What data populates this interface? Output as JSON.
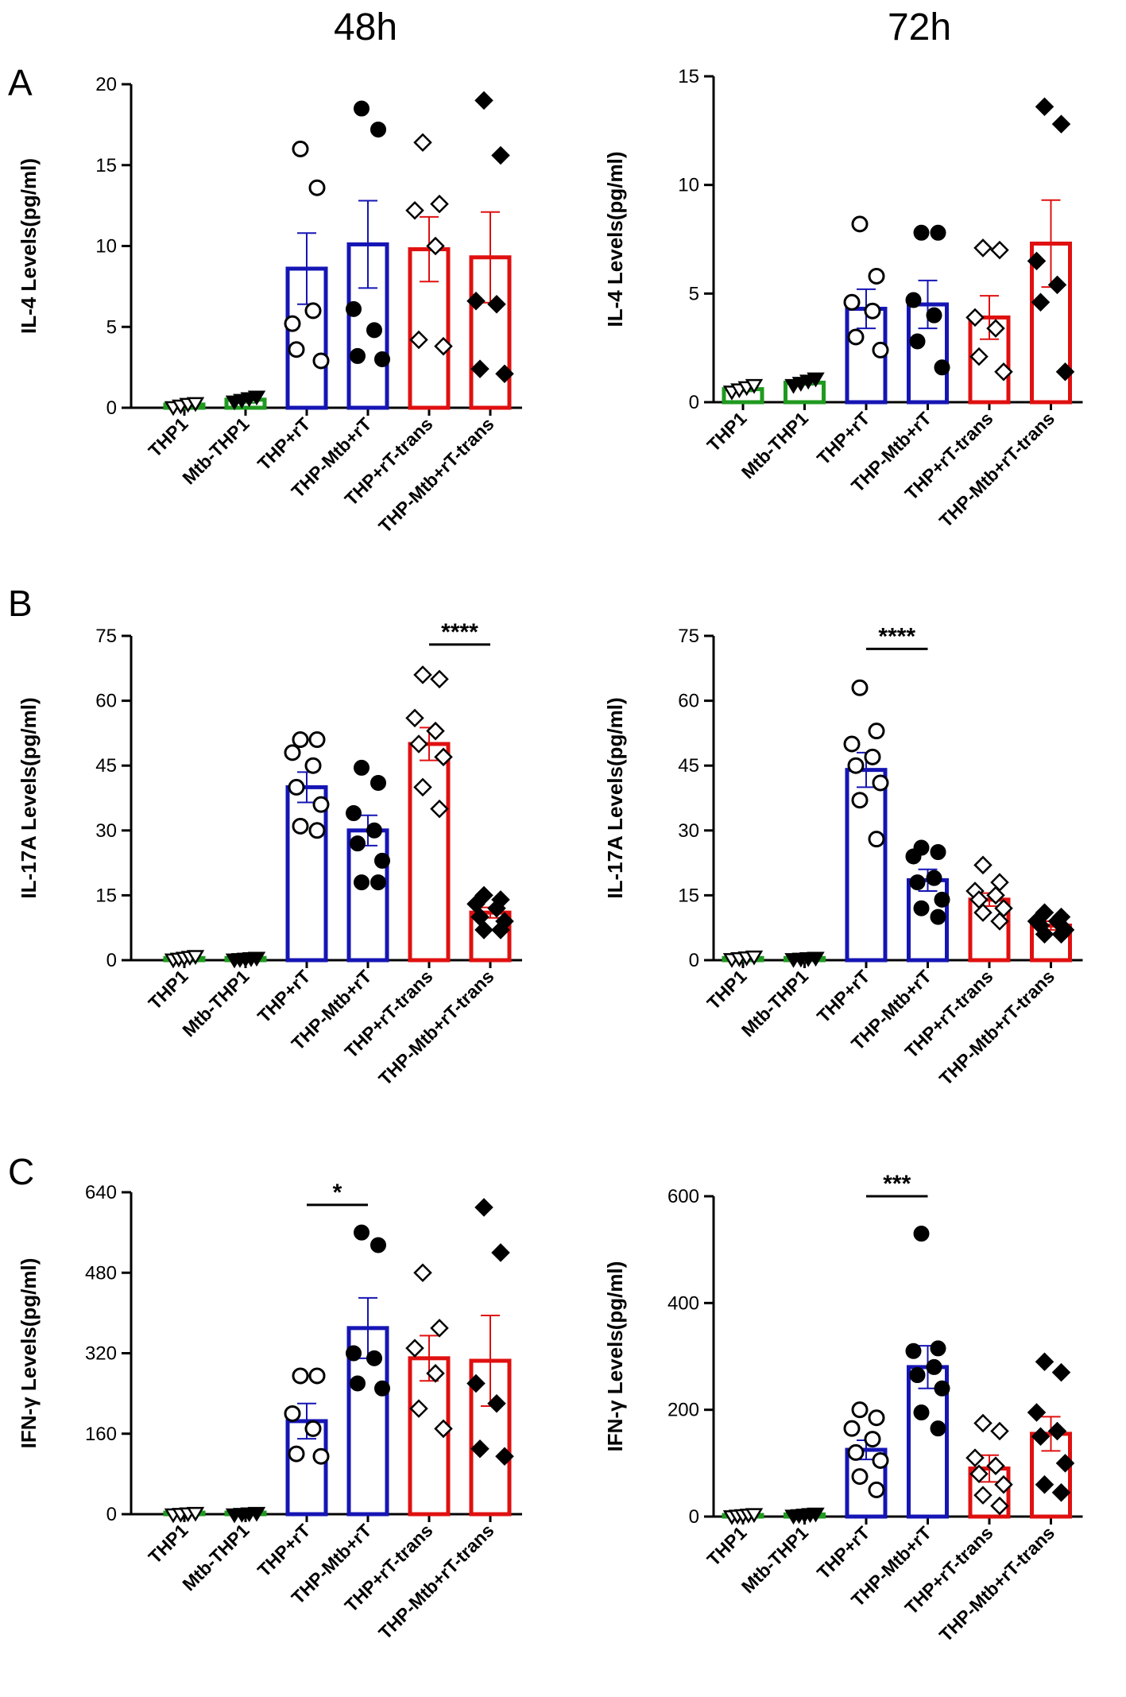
{
  "headers": {
    "left": "48h",
    "right": "72h"
  },
  "panel_labels": {
    "a": "A",
    "b": "B",
    "c": "C"
  },
  "categories": [
    "THP1",
    "Mtb-THP1",
    "THP+rT",
    "THP-Mtb+rT",
    "THP+rT-trans",
    "THP-Mtb+rT-trans"
  ],
  "colors": {
    "thp": "#1f9a1f",
    "rt": "#1515b5",
    "trans": "#e01010",
    "axis": "#000000"
  },
  "chart_data": [
    {
      "type": "bar",
      "id": "A-48h",
      "title": "48h",
      "panel": "A",
      "ylabel": "IL-4 Levels(pg/ml)",
      "ylim": [
        0,
        20
      ],
      "yticks": [
        0,
        5,
        10,
        15,
        20
      ],
      "categories": [
        "THP1",
        "Mtb-THP1",
        "THP+rT",
        "THP-Mtb+rT",
        "THP+rT-trans",
        "THP-Mtb+rT-trans"
      ],
      "values": [
        0.2,
        0.5,
        8.6,
        10.1,
        9.8,
        9.3
      ],
      "sem": [
        0.1,
        0.2,
        2.2,
        2.7,
        2.0,
        2.8
      ],
      "points": [
        [
          0.05,
          0.15,
          0.25,
          0.3
        ],
        [
          0.4,
          0.5,
          0.6,
          0.7
        ],
        [
          16.0,
          13.6,
          5.2,
          6.0,
          3.6,
          2.9
        ],
        [
          18.5,
          17.2,
          6.1,
          4.8,
          3.2,
          3.0
        ],
        [
          16.4,
          12.6,
          12.2,
          10.0,
          4.2,
          3.8
        ],
        [
          19.0,
          15.6,
          6.6,
          6.4,
          2.4,
          2.1
        ]
      ],
      "significance": []
    },
    {
      "type": "bar",
      "id": "A-72h",
      "title": "72h",
      "panel": "A",
      "ylabel": "IL-4 Levels(pg/ml)",
      "ylim": [
        0,
        15
      ],
      "yticks": [
        0,
        5,
        10,
        15
      ],
      "categories": [
        "THP1",
        "Mtb-THP1",
        "THP+rT",
        "THP-Mtb+rT",
        "THP+rT-trans",
        "THP-Mtb+rT-trans"
      ],
      "values": [
        0.6,
        0.9,
        4.3,
        4.5,
        3.9,
        7.3
      ],
      "sem": [
        0.1,
        0.1,
        0.9,
        1.1,
        1.0,
        2.0
      ],
      "points": [
        [
          0.5,
          0.6,
          0.7,
          0.8
        ],
        [
          0.8,
          0.9,
          1.0,
          1.1
        ],
        [
          8.2,
          5.8,
          4.6,
          4.2,
          3.0,
          2.4
        ],
        [
          7.8,
          7.8,
          4.7,
          4.0,
          2.8,
          1.6
        ],
        [
          7.1,
          7.0,
          3.9,
          3.4,
          2.1,
          1.4
        ],
        [
          13.6,
          12.8,
          6.5,
          5.4,
          4.6,
          1.4
        ]
      ],
      "significance": []
    },
    {
      "type": "bar",
      "id": "B-48h",
      "title": "48h",
      "panel": "B",
      "ylabel": "IL-17A Levels(pg/ml)",
      "ylim": [
        0,
        75
      ],
      "yticks": [
        0,
        15,
        30,
        45,
        60,
        75
      ],
      "categories": [
        "THP1",
        "Mtb-THP1",
        "THP+rT",
        "THP-Mtb+rT",
        "THP+rT-trans",
        "THP-Mtb+rT-trans"
      ],
      "values": [
        0.5,
        0.5,
        40.0,
        30.0,
        50.0,
        11.0
      ],
      "sem": [
        0.2,
        0.2,
        3.5,
        3.5,
        3.8,
        1.2
      ],
      "points": [
        [
          0.2,
          0.4,
          0.6,
          0.8,
          1.0
        ],
        [
          0.2,
          0.3,
          0.4,
          0.5,
          0.6
        ],
        [
          51.0,
          51.0,
          48.0,
          45.0,
          40.0,
          36.0,
          31.0,
          30.0
        ],
        [
          44.5,
          41.0,
          34.0,
          30.0,
          27.0,
          23.0,
          18.0,
          18.0
        ],
        [
          66.0,
          65.0,
          56.0,
          53.0,
          50.0,
          47.0,
          40.0,
          35.0
        ],
        [
          15.0,
          14.0,
          13.0,
          12.0,
          10.0,
          9.0,
          7.0,
          7.0
        ]
      ],
      "significance": [
        {
          "from": 4,
          "to": 5,
          "label": "****",
          "level": 73
        }
      ]
    },
    {
      "type": "bar",
      "id": "B-72h",
      "title": "72h",
      "panel": "B",
      "ylabel": "IL-17A Levels(pg/ml)",
      "ylim": [
        0,
        75
      ],
      "yticks": [
        0,
        15,
        30,
        45,
        60,
        75
      ],
      "categories": [
        "THP1",
        "Mtb-THP1",
        "THP+rT",
        "THP-Mtb+rT",
        "THP+rT-trans",
        "THP-Mtb+rT-trans"
      ],
      "values": [
        0.5,
        0.5,
        44.0,
        18.5,
        14.0,
        8.0
      ],
      "sem": [
        0.2,
        0.2,
        4.0,
        2.5,
        1.5,
        1.0
      ],
      "points": [
        [
          0.3,
          0.5,
          0.7,
          0.9
        ],
        [
          0.3,
          0.4,
          0.5,
          0.6
        ],
        [
          63.0,
          53.0,
          50.0,
          47.0,
          45.0,
          41.0,
          37.0,
          28.0
        ],
        [
          26.0,
          25.0,
          24.0,
          19.0,
          18.0,
          14.0,
          12.0,
          10.0
        ],
        [
          22.0,
          18.0,
          16.0,
          15.0,
          14.0,
          12.0,
          11.0,
          9.0
        ],
        [
          11.0,
          10.0,
          9.0,
          9.0,
          8.0,
          7.0,
          6.0,
          6.0
        ]
      ],
      "significance": [
        {
          "from": 2,
          "to": 3,
          "label": "****",
          "level": 72
        }
      ]
    },
    {
      "type": "bar",
      "id": "C-48h",
      "title": "48h",
      "panel": "C",
      "ylabel": "IFN-γ Levels(pg/ml)",
      "ylim": [
        0,
        640
      ],
      "yticks": [
        0,
        160,
        320,
        480,
        640
      ],
      "categories": [
        "THP1",
        "Mtb-THP1",
        "THP+rT",
        "THP-Mtb+rT",
        "THP+rT-trans",
        "THP-Mtb+rT-trans"
      ],
      "values": [
        0,
        0,
        185,
        370,
        310,
        305
      ],
      "sem": [
        1,
        1,
        35,
        60,
        45,
        90
      ],
      "points": [
        [
          0,
          1,
          2,
          3
        ],
        [
          0,
          1,
          2,
          3
        ],
        [
          275,
          275,
          200,
          170,
          120,
          115
        ],
        [
          560,
          535,
          320,
          310,
          260,
          250
        ],
        [
          480,
          370,
          330,
          280,
          210,
          170
        ],
        [
          610,
          520,
          260,
          220,
          130,
          115
        ]
      ],
      "significance": [
        {
          "from": 2,
          "to": 3,
          "label": "*",
          "level": 615
        }
      ]
    },
    {
      "type": "bar",
      "id": "C-72h",
      "title": "72h",
      "panel": "C",
      "ylabel": "IFN-γ Levels(pg/ml)",
      "ylim": [
        0,
        600
      ],
      "yticks": [
        0,
        200,
        400,
        600
      ],
      "categories": [
        "THP1",
        "Mtb-THP1",
        "THP+rT",
        "THP-Mtb+rT",
        "THP+rT-trans",
        "THP-Mtb+rT-trans"
      ],
      "values": [
        2,
        4,
        125,
        280,
        90,
        155
      ],
      "sem": [
        1,
        1,
        18,
        40,
        25,
        32
      ],
      "points": [
        [
          1,
          2,
          3,
          4,
          5
        ],
        [
          2,
          3,
          4,
          5,
          6
        ],
        [
          200,
          185,
          165,
          145,
          120,
          105,
          75,
          50
        ],
        [
          530,
          315,
          310,
          280,
          265,
          240,
          195,
          165
        ],
        [
          175,
          160,
          110,
          95,
          80,
          60,
          40,
          20
        ],
        [
          290,
          270,
          195,
          160,
          150,
          100,
          60,
          45
        ]
      ],
      "significance": [
        {
          "from": 2,
          "to": 3,
          "label": "***",
          "level": 600
        }
      ]
    }
  ]
}
